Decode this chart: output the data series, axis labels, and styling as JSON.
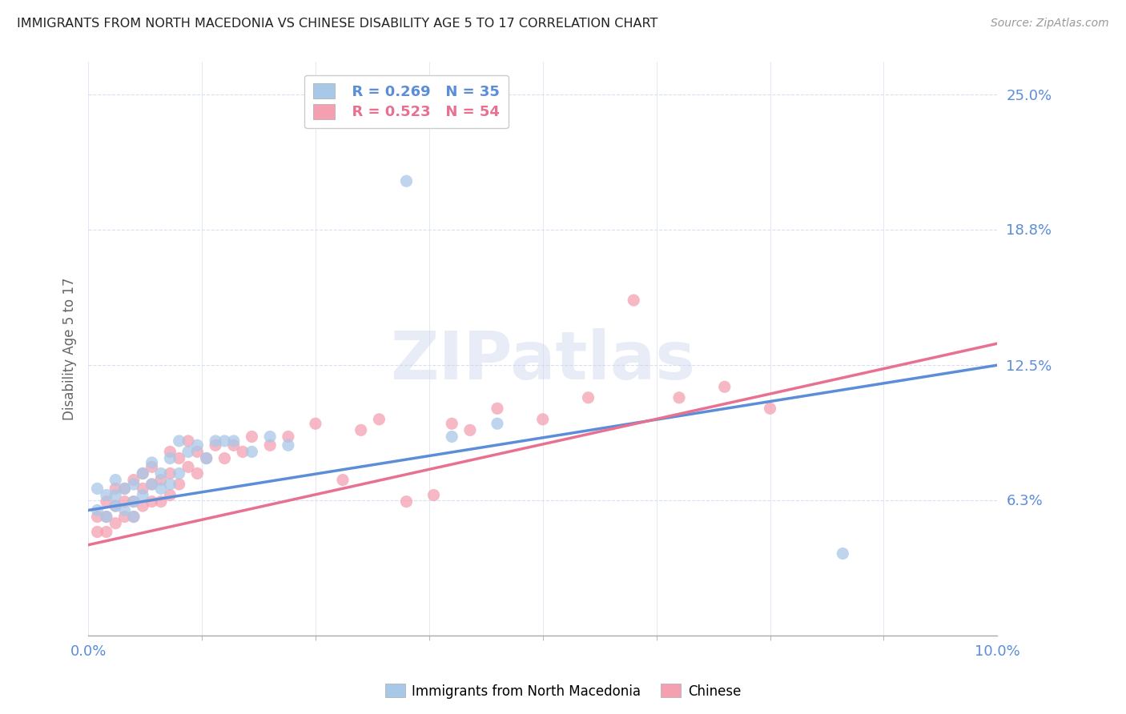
{
  "title": "IMMIGRANTS FROM NORTH MACEDONIA VS CHINESE DISABILITY AGE 5 TO 17 CORRELATION CHART",
  "source": "Source: ZipAtlas.com",
  "ylabel": "Disability Age 5 to 17",
  "xlim": [
    0.0,
    0.1
  ],
  "ylim": [
    0.0,
    0.265
  ],
  "ytick_labels_right": [
    "25.0%",
    "18.8%",
    "12.5%",
    "6.3%"
  ],
  "ytick_positions_right": [
    0.25,
    0.188,
    0.125,
    0.063
  ],
  "blue_R": 0.269,
  "blue_N": 35,
  "pink_R": 0.523,
  "pink_N": 54,
  "blue_color": "#a8c8e8",
  "pink_color": "#f4a0b0",
  "blue_line_color": "#5b8dd9",
  "pink_line_color": "#e87090",
  "legend_label_blue": "Immigrants from North Macedonia",
  "legend_label_pink": "Chinese",
  "watermark": "ZIPatlas",
  "background_color": "#ffffff",
  "grid_color": "#d8dff0",
  "axis_label_color": "#5b8dd9",
  "blue_scatter_x": [
    0.001,
    0.001,
    0.002,
    0.002,
    0.003,
    0.003,
    0.003,
    0.004,
    0.004,
    0.005,
    0.005,
    0.005,
    0.006,
    0.006,
    0.007,
    0.007,
    0.008,
    0.008,
    0.009,
    0.009,
    0.01,
    0.01,
    0.011,
    0.012,
    0.013,
    0.014,
    0.015,
    0.016,
    0.018,
    0.02,
    0.022,
    0.035,
    0.04,
    0.083,
    0.045
  ],
  "blue_scatter_y": [
    0.058,
    0.068,
    0.055,
    0.065,
    0.06,
    0.065,
    0.072,
    0.058,
    0.068,
    0.055,
    0.062,
    0.07,
    0.065,
    0.075,
    0.07,
    0.08,
    0.068,
    0.075,
    0.07,
    0.082,
    0.075,
    0.09,
    0.085,
    0.088,
    0.082,
    0.09,
    0.09,
    0.09,
    0.085,
    0.092,
    0.088,
    0.21,
    0.092,
    0.038,
    0.098
  ],
  "pink_scatter_x": [
    0.001,
    0.001,
    0.002,
    0.002,
    0.002,
    0.003,
    0.003,
    0.003,
    0.004,
    0.004,
    0.004,
    0.005,
    0.005,
    0.005,
    0.006,
    0.006,
    0.006,
    0.007,
    0.007,
    0.007,
    0.008,
    0.008,
    0.009,
    0.009,
    0.009,
    0.01,
    0.01,
    0.011,
    0.011,
    0.012,
    0.012,
    0.013,
    0.014,
    0.015,
    0.016,
    0.017,
    0.018,
    0.02,
    0.022,
    0.025,
    0.028,
    0.03,
    0.032,
    0.035,
    0.038,
    0.04,
    0.042,
    0.045,
    0.05,
    0.055,
    0.06,
    0.065,
    0.07,
    0.075
  ],
  "pink_scatter_y": [
    0.048,
    0.055,
    0.048,
    0.055,
    0.062,
    0.052,
    0.06,
    0.068,
    0.055,
    0.062,
    0.068,
    0.055,
    0.062,
    0.072,
    0.06,
    0.068,
    0.075,
    0.062,
    0.07,
    0.078,
    0.062,
    0.072,
    0.065,
    0.075,
    0.085,
    0.07,
    0.082,
    0.078,
    0.09,
    0.075,
    0.085,
    0.082,
    0.088,
    0.082,
    0.088,
    0.085,
    0.092,
    0.088,
    0.092,
    0.098,
    0.072,
    0.095,
    0.1,
    0.062,
    0.065,
    0.098,
    0.095,
    0.105,
    0.1,
    0.11,
    0.155,
    0.11,
    0.115,
    0.105
  ],
  "blue_line_x0": 0.0,
  "blue_line_y0": 0.058,
  "blue_line_x1": 0.1,
  "blue_line_y1": 0.125,
  "pink_line_x0": 0.0,
  "pink_line_y0": 0.042,
  "pink_line_x1": 0.1,
  "pink_line_y1": 0.135
}
